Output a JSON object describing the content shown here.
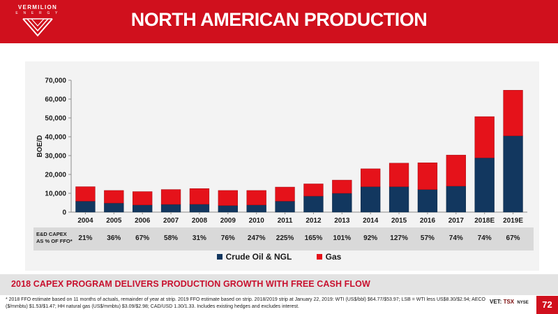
{
  "brand": {
    "name": "VERMILION",
    "sub": "E N E R G Y",
    "primary_color": "#d0101d"
  },
  "header": {
    "title": "NORTH AMERICAN PRODUCTION"
  },
  "chart_data": {
    "type": "bar",
    "stacked": true,
    "categories": [
      "2004",
      "2005",
      "2006",
      "2007",
      "2008",
      "2009",
      "2010",
      "2011",
      "2012",
      "2013",
      "2014",
      "2015",
      "2016",
      "2017",
      "2018E",
      "2019E"
    ],
    "series": [
      {
        "name": "Crude Oil & NGL",
        "color": "#12375f",
        "values": [
          5800,
          4800,
          3800,
          4100,
          4200,
          3500,
          3800,
          5800,
          8500,
          10000,
          13500,
          13500,
          12000,
          13800,
          28800,
          40500
        ]
      },
      {
        "name": "Gas",
        "color": "#e5121a",
        "values": [
          7700,
          6700,
          7100,
          7900,
          8300,
          8000,
          7700,
          7500,
          6500,
          7000,
          9500,
          12500,
          14200,
          16500,
          21900,
          24200
        ]
      }
    ],
    "ylabel": "BOE/D",
    "ylim": [
      0,
      70000
    ],
    "yticks": [
      "0",
      "10,000",
      "20,000",
      "30,000",
      "40,000",
      "50,000",
      "60,000",
      "70,000"
    ],
    "ytick_values": [
      0,
      10000,
      20000,
      30000,
      40000,
      50000,
      60000,
      70000
    ],
    "grid": false,
    "legend_position": "bottom"
  },
  "capex": {
    "label_line1": "E&D CAPEX",
    "label_line2": "AS % OF FFO*",
    "values": [
      "21%",
      "36%",
      "67%",
      "58%",
      "31%",
      "76%",
      "247%",
      "225%",
      "165%",
      "101%",
      "92%",
      "127%",
      "57%",
      "74%",
      "74%",
      "67%"
    ]
  },
  "legend": {
    "crude": "Crude Oil & NGL",
    "gas": "Gas"
  },
  "subtitle": "2018 CAPEX PROGRAM DELIVERS PRODUCTION GROWTH WITH FREE CASH FLOW",
  "footnote": "* 2018 FFO estimate based on 11 months of actuals, remainder of year at strip. 2019 FFO estimate based on strip. 2018/2019 strip at January 22, 2019: WTI (US$/bbl) $64.77/$53.97; LSB = WTI less US$8.30/$2.94; AECO ($/mmbtu) $1.53/$1.47; HH natural gas (US$/mmbtu) $3.09/$2.98; CAD/USD 1.30/1.33. Includes existing hedges and excludes interest.",
  "tickers": {
    "vet": "VET:",
    "tsx": "TSX",
    "nyse": "NYSE"
  },
  "page_number": "72"
}
